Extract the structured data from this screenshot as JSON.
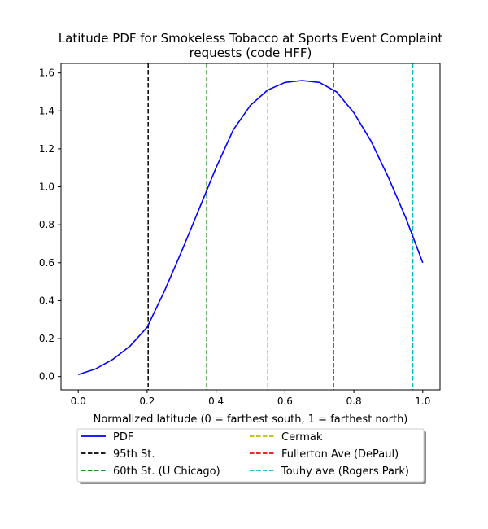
{
  "chart_data": {
    "type": "line",
    "title_lines": [
      "Latitude PDF for Smokeless Tobacco at Sports Event Complaint",
      "requests (code HFF)"
    ],
    "xlabel": "Normalized latitude (0 = farthest south, 1 = farthest north)",
    "ylabel": "",
    "xlim": [
      -0.05,
      1.05
    ],
    "ylim": [
      -0.07,
      1.65
    ],
    "xticks": [
      0.0,
      0.2,
      0.4,
      0.6,
      0.8,
      1.0
    ],
    "xtick_labels": [
      "0.0",
      "0.2",
      "0.4",
      "0.6",
      "0.8",
      "1.0"
    ],
    "yticks": [
      0.0,
      0.2,
      0.4,
      0.6,
      0.8,
      1.0,
      1.2,
      1.4,
      1.6
    ],
    "ytick_labels": [
      "0.0",
      "0.2",
      "0.4",
      "0.6",
      "0.8",
      "1.0",
      "1.2",
      "1.4",
      "1.6"
    ],
    "grid": false,
    "legend_position": "bottom-center, below axes, 2 columns",
    "series": [
      {
        "name": "PDF",
        "color": "#0000ff",
        "style": "solid",
        "x": [
          0.0,
          0.05,
          0.1,
          0.15,
          0.2,
          0.25,
          0.3,
          0.35,
          0.4,
          0.45,
          0.5,
          0.55,
          0.6,
          0.65,
          0.7,
          0.75,
          0.8,
          0.85,
          0.9,
          0.95,
          1.0
        ],
        "y": [
          0.01,
          0.04,
          0.09,
          0.16,
          0.26,
          0.45,
          0.66,
          0.88,
          1.1,
          1.3,
          1.43,
          1.51,
          1.55,
          1.56,
          1.55,
          1.5,
          1.39,
          1.24,
          1.05,
          0.84,
          0.6
        ]
      }
    ],
    "vlines": [
      {
        "name": "95th St.",
        "x": 0.203,
        "color": "#000000"
      },
      {
        "name": "60th St. (U Chicago)",
        "x": 0.373,
        "color": "#008000"
      },
      {
        "name": "Cermak",
        "x": 0.55,
        "color": "#bfbf00"
      },
      {
        "name": "Fullerton Ave (DePaul)",
        "x": 0.741,
        "color": "#ff0000"
      },
      {
        "name": "Touhy ave (Rogers Park)",
        "x": 0.971,
        "color": "#00bfbf"
      }
    ],
    "legend": [
      {
        "label": "PDF",
        "color": "#0000ff",
        "style": "solid"
      },
      {
        "label": "95th St.",
        "color": "#000000",
        "style": "dashed"
      },
      {
        "label": "60th St. (U Chicago)",
        "color": "#008000",
        "style": "dashed"
      },
      {
        "label": "Cermak",
        "color": "#bfbf00",
        "style": "dashed"
      },
      {
        "label": "Fullerton Ave (DePaul)",
        "color": "#ff0000",
        "style": "dashed"
      },
      {
        "label": "Touhy ave (Rogers Park)",
        "color": "#00bfbf",
        "style": "dashed"
      }
    ]
  }
}
